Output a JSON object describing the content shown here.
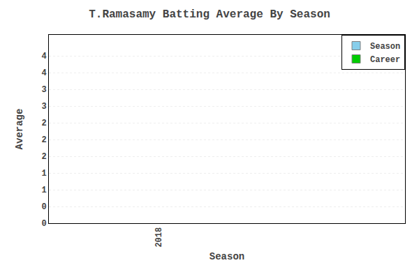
{
  "chart_data": {
    "type": "bar",
    "title": "T.Ramasamy Batting Average By Season",
    "xlabel": "Season",
    "ylabel": "Average",
    "x": [
      2018
    ],
    "series": [
      {
        "name": "Season",
        "color": "#87CEEB",
        "values": [
          null
        ]
      },
      {
        "name": "Career",
        "color": "#00CC00",
        "values": [
          null
        ]
      }
    ],
    "xlim": [
      2017.6,
      2018.9
    ],
    "xticks": [
      2018
    ],
    "ylim": [
      0,
      4.5
    ],
    "yticks": [
      {
        "value": 0.0,
        "label": "0"
      },
      {
        "value": 0.4,
        "label": "0"
      },
      {
        "value": 0.8,
        "label": "1"
      },
      {
        "value": 1.2,
        "label": "1"
      },
      {
        "value": 1.6,
        "label": "2"
      },
      {
        "value": 2.0,
        "label": "2"
      },
      {
        "value": 2.4,
        "label": "2"
      },
      {
        "value": 2.8,
        "label": "3"
      },
      {
        "value": 3.2,
        "label": "3"
      },
      {
        "value": 3.6,
        "label": "4"
      },
      {
        "value": 4.0,
        "label": "4"
      }
    ],
    "grid": "y",
    "legend": "upper right"
  }
}
